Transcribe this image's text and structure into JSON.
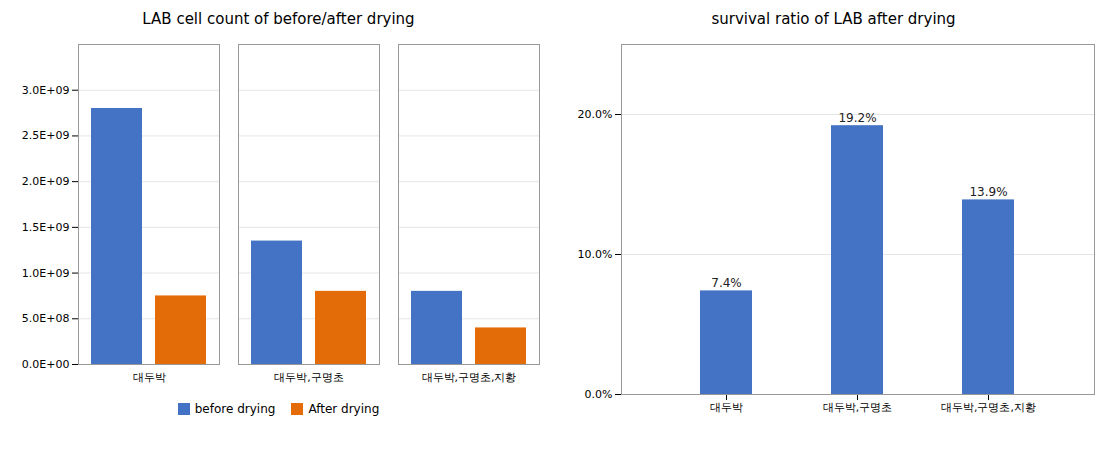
{
  "chart_data": [
    {
      "type": "bar",
      "title": "LAB cell count of before/after drying",
      "categories": [
        "대두박",
        "대두박,구명초",
        "대두박,구명초,지황"
      ],
      "series": [
        {
          "name": "before drying",
          "color": "#4472C4",
          "values": [
            2800000000,
            1350000000,
            800000000
          ]
        },
        {
          "name": "After drying",
          "color": "#E36C09",
          "values": [
            750000000,
            800000000,
            400000000
          ]
        }
      ],
      "ylim": [
        0,
        3500000000
      ],
      "yticks": [
        {
          "value": 0,
          "label": "0.0E+00"
        },
        {
          "value": 500000000,
          "label": "5.0E+08"
        },
        {
          "value": 1000000000,
          "label": "1.0E+09"
        },
        {
          "value": 1500000000,
          "label": "1.5E+09"
        },
        {
          "value": 2000000000,
          "label": "2.0E+09"
        },
        {
          "value": 2500000000,
          "label": "2.5E+09"
        },
        {
          "value": 3000000000,
          "label": "3.0E+09"
        }
      ],
      "grid": true,
      "legend": "bottom"
    },
    {
      "type": "bar",
      "title": "survival  ratio of LAB after drying",
      "categories": [
        "대두박",
        "대두박,구명초",
        "대두박,구명초,지황"
      ],
      "values": [
        0.074,
        0.192,
        0.139
      ],
      "value_labels": [
        "7.4%",
        "19.2%",
        "13.9%"
      ],
      "color": "#4472C4",
      "ylim": [
        0,
        0.25
      ],
      "yticks": [
        {
          "value": 0.0,
          "label": "0.0%"
        },
        {
          "value": 0.1,
          "label": "10.0%"
        },
        {
          "value": 0.2,
          "label": "20.0%"
        }
      ],
      "grid": true,
      "data_labels": true
    }
  ]
}
